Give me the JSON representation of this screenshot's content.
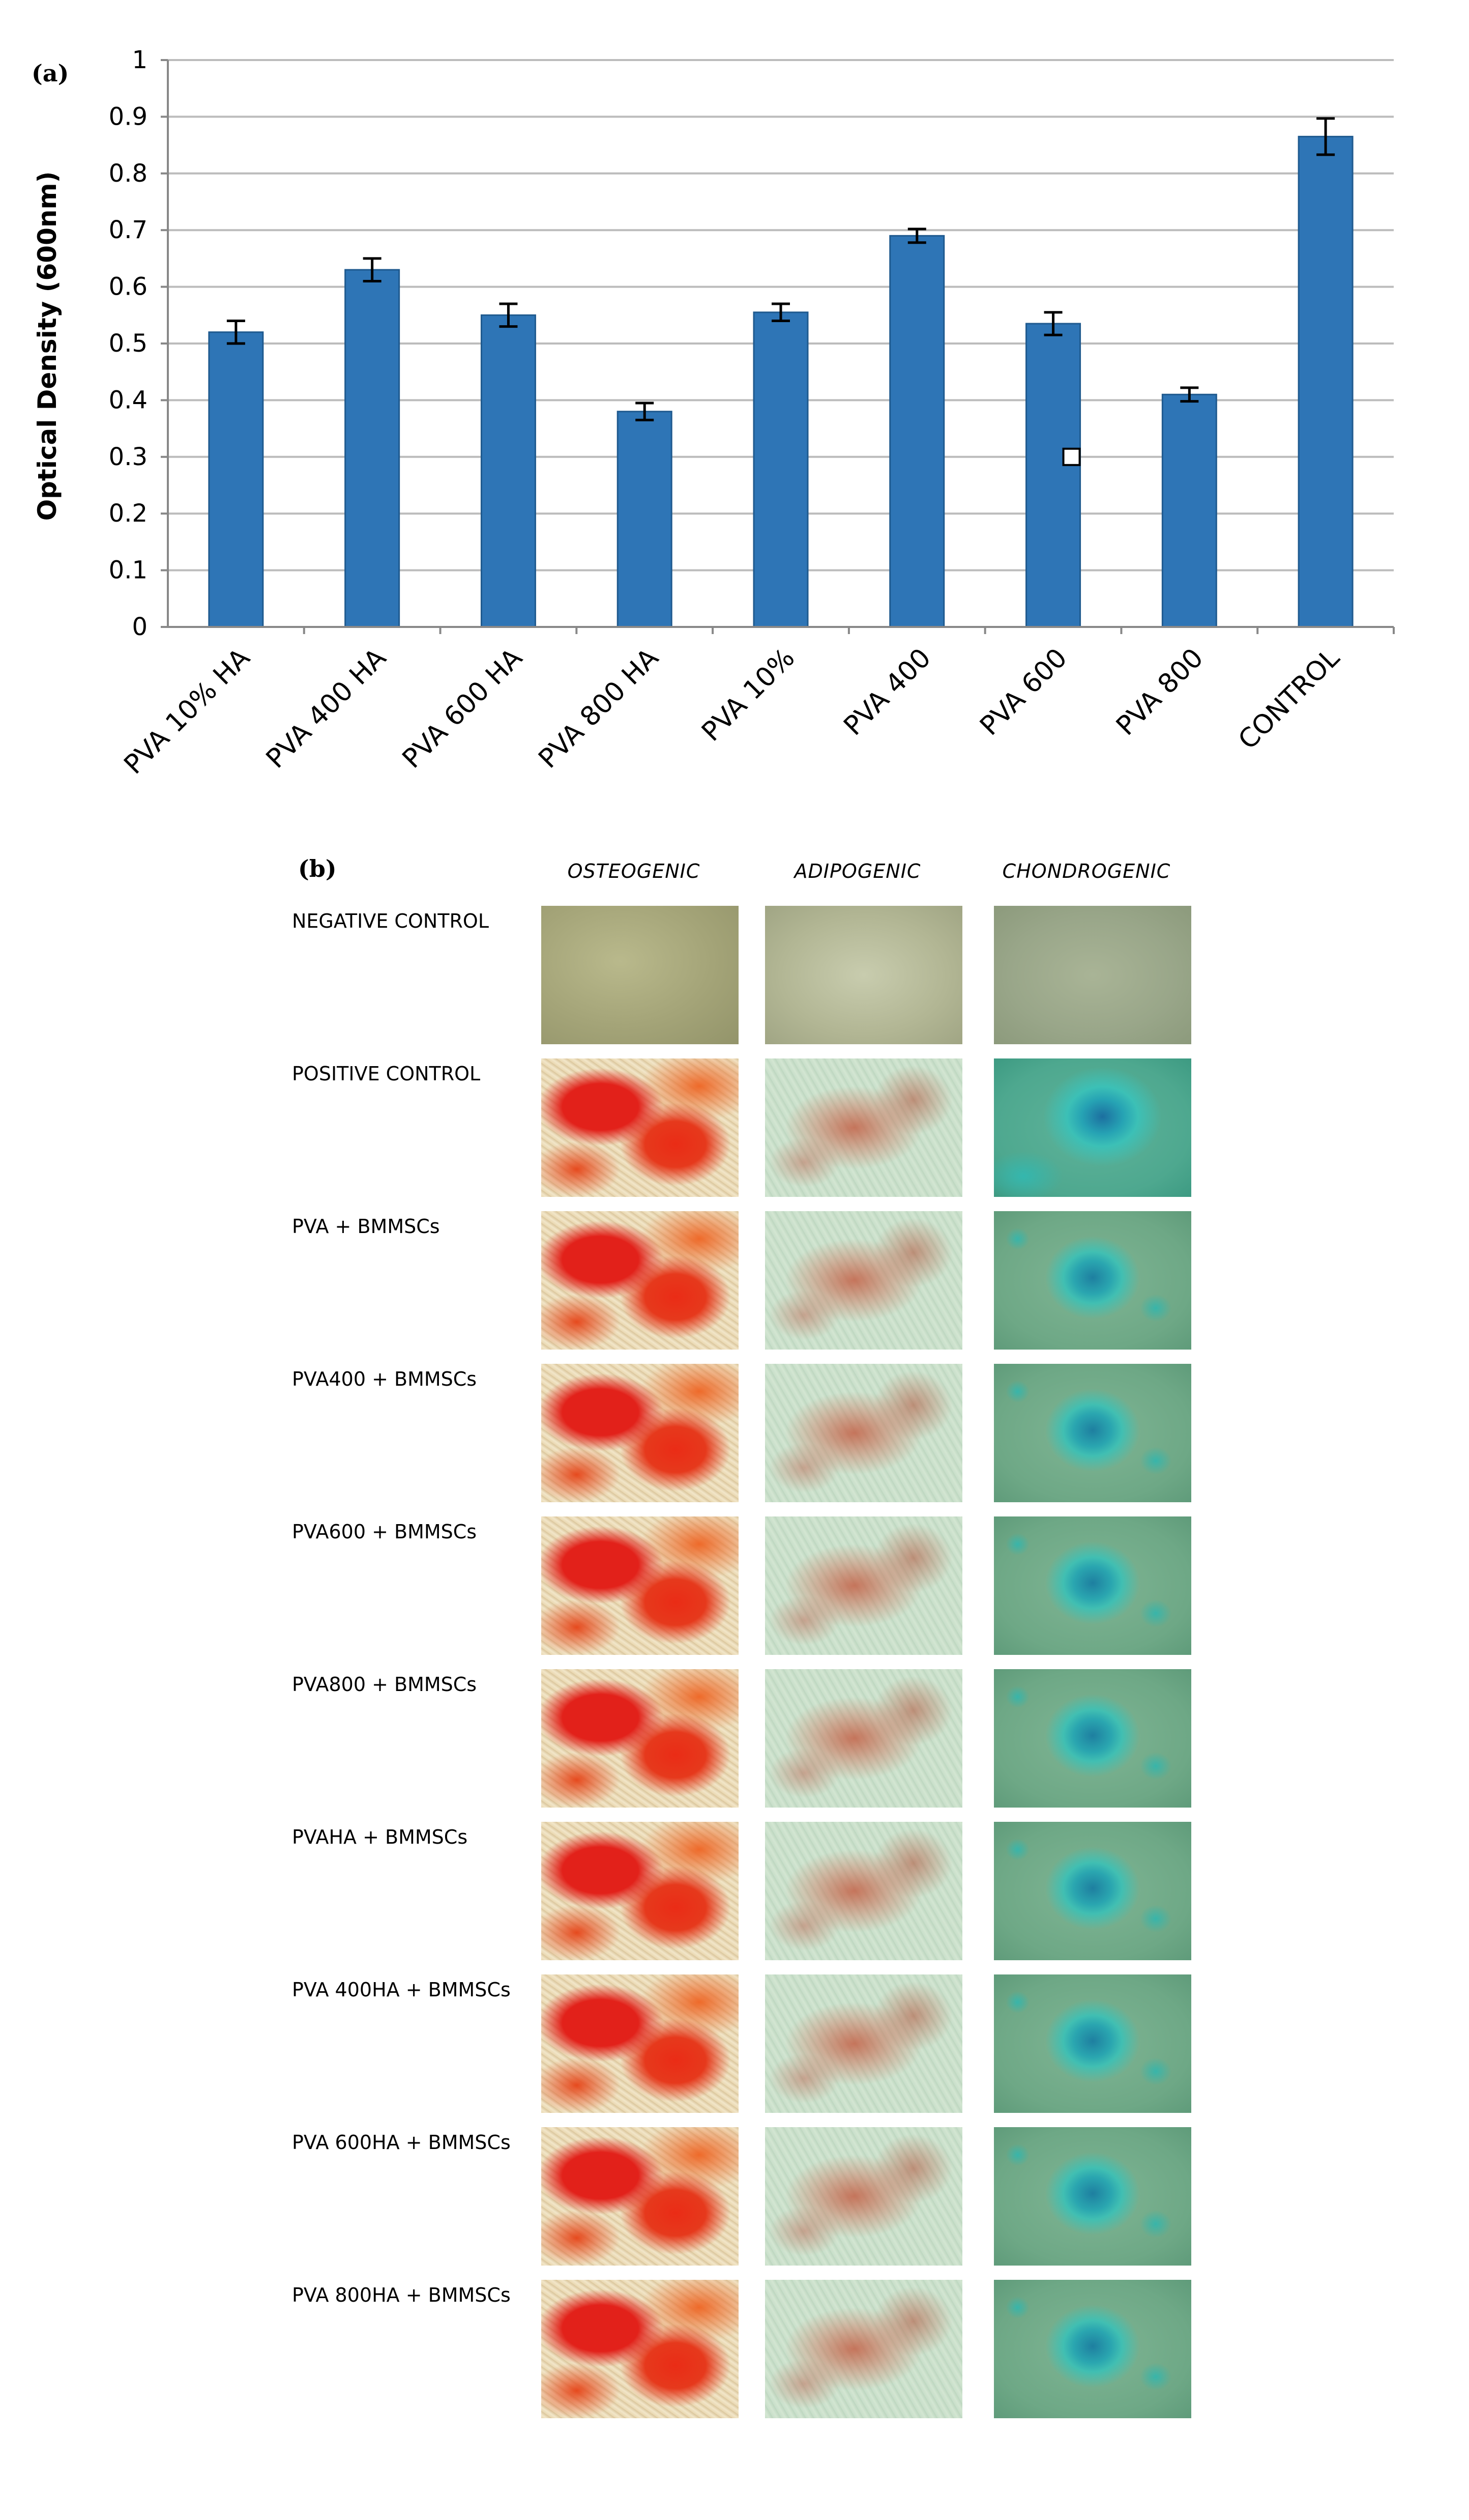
{
  "panel_a_label": "(a)",
  "panel_b_label": "(b)",
  "chart_data": {
    "type": "bar",
    "title": "",
    "xlabel": "",
    "ylabel": "Optical Density (600nm)",
    "ylim": [
      0,
      1
    ],
    "yticks": [
      "0",
      "0.1",
      "0.2",
      "0.3",
      "0.4",
      "0.5",
      "0.6",
      "0.7",
      "0.8",
      "0.9",
      "1"
    ],
    "grid": true,
    "categories": [
      "PVA 10% HA",
      "PVA 400  HA",
      "PVA 600  HA",
      "PVA 800  HA",
      "PVA 10%",
      "PVA 400",
      "PVA 600",
      "PVA 800",
      "CONTROL"
    ],
    "values": [
      0.52,
      0.63,
      0.55,
      0.38,
      0.555,
      0.69,
      0.535,
      0.41,
      0.865
    ],
    "errors": [
      0.02,
      0.02,
      0.02,
      0.015,
      0.015,
      0.012,
      0.02,
      0.012,
      0.032
    ],
    "bar_color": "#2e75b6",
    "marker": {
      "category": "PVA 600",
      "value": 0.3
    }
  },
  "micrograph_panel": {
    "columns": [
      "OSTEOGENIC",
      "ADIPOGENIC",
      "CHONDROGENIC"
    ],
    "rows": [
      {
        "label": "NEGATIVE CONTROL"
      },
      {
        "label": "POSITIVE CONTROL"
      },
      {
        "label": "PVA +  BMMSCs"
      },
      {
        "label": "PVA400 + BMMSCs"
      },
      {
        "label": "PVA600 + BMMSCs"
      },
      {
        "label": "PVA800 + BMMSCs"
      },
      {
        "label": "PVAHA  + BMMSCs"
      },
      {
        "label": "PVA 400HA + BMMSCs"
      },
      {
        "label": "PVA 600HA + BMMSCs"
      },
      {
        "label": "PVA 800HA + BMMSCs"
      }
    ]
  }
}
